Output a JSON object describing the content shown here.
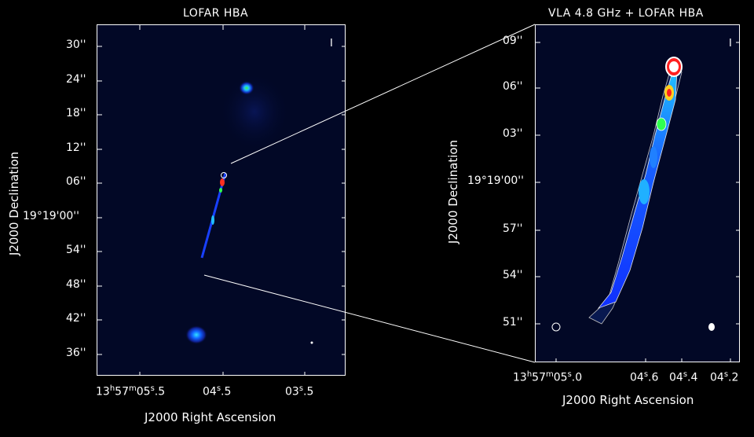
{
  "left_panel": {
    "title": "LOFAR HBA",
    "y_ticks": [
      "30''",
      "24''",
      "18''",
      "12''",
      "06''",
      "19°19'00''",
      "54''",
      "48''",
      "42''",
      "36''"
    ],
    "x_ticks": [
      {
        "h": "13",
        "hs": "h",
        "m": "57",
        "ms": "m",
        "s": "05",
        "ss": "s",
        "f": ".5"
      },
      {
        "s": "04",
        "ss": "s",
        "f": ".5"
      },
      {
        "s": "03",
        "ss": "s",
        "f": ".5"
      }
    ],
    "y_axis_label": "J2000 Declination",
    "x_axis_label": "J2000 Right Ascension",
    "corner_mark": "I"
  },
  "right_panel": {
    "title": "VLA 4.8 GHz + LOFAR HBA",
    "y_ticks": [
      "09''",
      "06''",
      "03''",
      "19°19'00''",
      "57''",
      "54''",
      "51''"
    ],
    "x_ticks": [
      {
        "h": "13",
        "hs": "h",
        "m": "57",
        "ms": "m",
        "s": "05",
        "ss": "s",
        "f": ".0"
      },
      {
        "s": "04",
        "ss": "s",
        "f": ".6"
      },
      {
        "s": "04",
        "ss": "s",
        "f": ".4"
      },
      {
        "s": "04",
        "ss": "s",
        "f": ".2"
      }
    ],
    "y_axis_label": "J2000 Declination",
    "x_axis_label": "J2000 Right Ascension",
    "corner_mark": "I"
  },
  "colors": {
    "background": "#000000",
    "image_bg": "#020826",
    "jet_blue": "#1030ff",
    "jet_cyan": "#20d0ff",
    "jet_green": "#30ff50",
    "jet_red": "#ff2020",
    "jet_white": "#ffffff"
  }
}
